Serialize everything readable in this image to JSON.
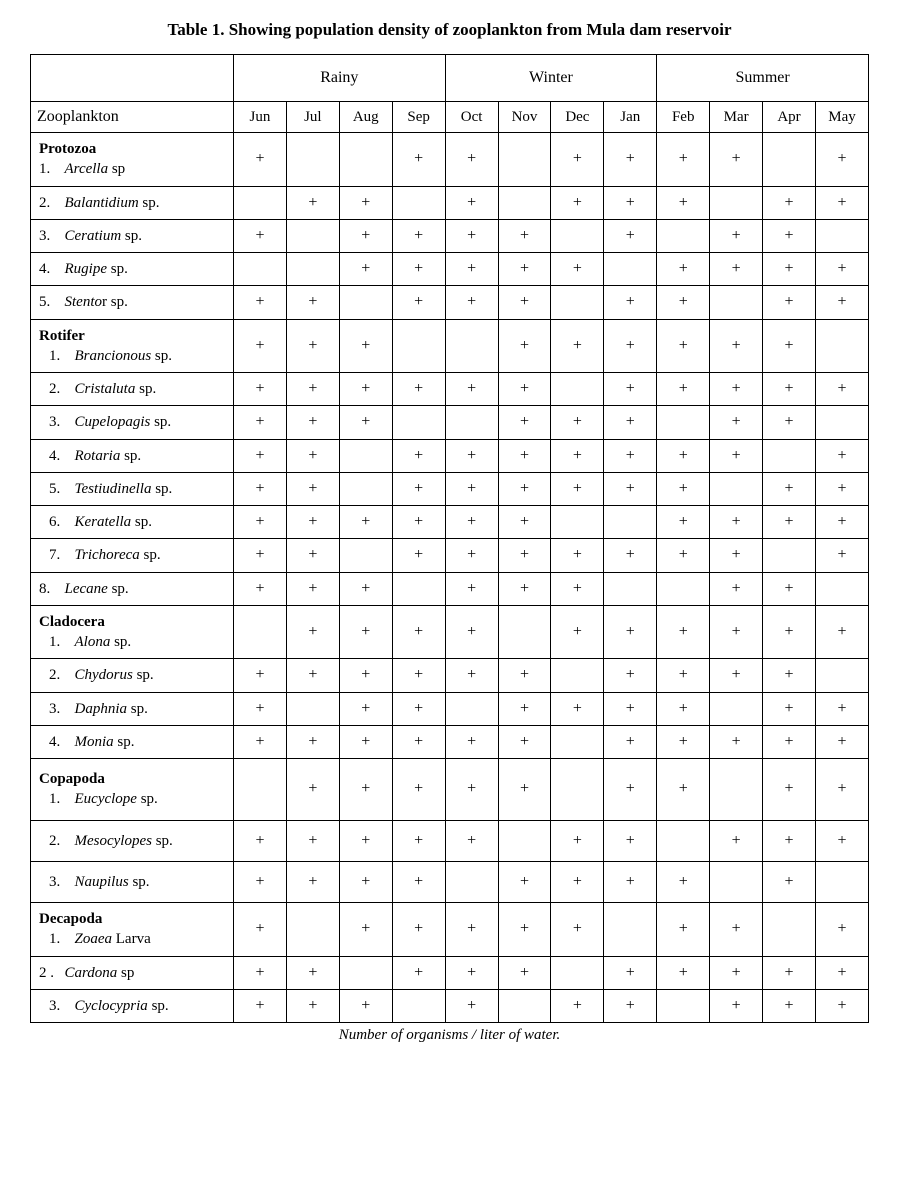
{
  "title": "Table 1. Showing population density of zooplankton from Mula dam reservoir",
  "rowHeader": "Zooplankton",
  "seasons": [
    "Rainy",
    "Winter",
    "Summer"
  ],
  "months": [
    "Jun",
    "Jul",
    "Aug",
    "Sep",
    "Oct",
    "Nov",
    "Dec",
    "Jan",
    "Feb",
    "Mar",
    "Apr",
    "May"
  ],
  "footnote": "Number of organisms / liter of water.",
  "mark": "+",
  "rows": [
    {
      "group": "Protozoa",
      "num": "1.",
      "italic": "Arcella",
      "suffix": " sp",
      "separatePart": "",
      "marks": [
        1,
        0,
        0,
        1,
        1,
        0,
        1,
        1,
        1,
        1,
        0,
        1
      ]
    },
    {
      "num": "2.",
      "italic": "Balantidium",
      "suffix": " sp.",
      "marks": [
        0,
        1,
        1,
        0,
        1,
        0,
        1,
        1,
        1,
        0,
        1,
        1
      ]
    },
    {
      "num": "3.",
      "italic": "Ceratium",
      "suffix": " sp.",
      "marks": [
        1,
        0,
        1,
        1,
        1,
        1,
        0,
        1,
        0,
        1,
        1,
        0
      ]
    },
    {
      "num": "4.",
      "italic": "Rugipe",
      "suffix": " sp.",
      "marks": [
        0,
        0,
        1,
        1,
        1,
        1,
        1,
        0,
        1,
        1,
        1,
        1
      ]
    },
    {
      "num": "5.",
      "italic": "Stento",
      "suffix": "r sp.",
      "separatePart": "r",
      "marks": [
        1,
        1,
        0,
        1,
        1,
        1,
        0,
        1,
        1,
        0,
        1,
        1
      ]
    },
    {
      "group": "Rotifer",
      "num": "1.",
      "italic": "Brancionous",
      "suffix": " sp.",
      "indent": true,
      "marks": [
        1,
        1,
        1,
        0,
        0,
        1,
        1,
        1,
        1,
        1,
        1,
        0
      ]
    },
    {
      "num": "2.",
      "italic": "Cristaluta",
      "suffix": " sp.",
      "indent": true,
      "marks": [
        1,
        1,
        1,
        1,
        1,
        1,
        0,
        1,
        1,
        1,
        1,
        1
      ]
    },
    {
      "num": "3.",
      "italic": "Cupelopagis",
      "suffix": " sp.",
      "indent": true,
      "marks": [
        1,
        1,
        1,
        0,
        0,
        1,
        1,
        1,
        0,
        1,
        1,
        0
      ]
    },
    {
      "num": "4.",
      "italic": "Rotaria",
      "suffix": " sp.",
      "indent": true,
      "marks": [
        1,
        1,
        0,
        1,
        1,
        1,
        1,
        1,
        1,
        1,
        0,
        1
      ]
    },
    {
      "num": "5.",
      "italic": "Testiudinella",
      "suffix": " sp.",
      "indent": true,
      "marks": [
        1,
        1,
        0,
        1,
        1,
        1,
        1,
        1,
        1,
        0,
        1,
        1
      ]
    },
    {
      "num": "6.",
      "italic": "Keratella",
      "suffix": " sp.",
      "indent": true,
      "marks": [
        1,
        1,
        1,
        1,
        1,
        1,
        0,
        0,
        1,
        1,
        1,
        1
      ]
    },
    {
      "num": "7.",
      "italic": "Trichoreca",
      "suffix": " sp.",
      "indent": true,
      "marks": [
        1,
        1,
        0,
        1,
        1,
        1,
        1,
        1,
        1,
        1,
        0,
        1
      ]
    },
    {
      "num": "8.",
      "italic": "Lecane",
      "suffix": " sp.",
      "marks": [
        1,
        1,
        1,
        0,
        1,
        1,
        1,
        0,
        0,
        1,
        1,
        0
      ]
    },
    {
      "group": "Cladocera",
      "num": "1.",
      "italic": "Alona",
      "suffix": " sp.",
      "indent": true,
      "marks": [
        0,
        1,
        1,
        1,
        1,
        0,
        1,
        1,
        1,
        1,
        1,
        1
      ]
    },
    {
      "num": "2.",
      "italic": "Chydorus",
      "suffix": " sp.",
      "indent": true,
      "marks": [
        1,
        1,
        1,
        1,
        1,
        1,
        0,
        1,
        1,
        1,
        1,
        0
      ]
    },
    {
      "num": "3.",
      "italic": "Daphnia",
      "suffix": " sp.",
      "indent": true,
      "marks": [
        1,
        0,
        1,
        1,
        0,
        1,
        1,
        1,
        1,
        0,
        1,
        1
      ]
    },
    {
      "num": "4.",
      "italic": "Monia",
      "suffix": " sp.",
      "indent": true,
      "marks": [
        1,
        1,
        1,
        1,
        1,
        1,
        0,
        1,
        1,
        1,
        1,
        1
      ]
    },
    {
      "group": "Copapoda",
      "num": "1.",
      "italic": "Eucyclope",
      "suffix": " sp.",
      "indent": true,
      "tall": true,
      "marks": [
        0,
        1,
        1,
        1,
        1,
        1,
        0,
        1,
        1,
        0,
        1,
        1
      ]
    },
    {
      "num": "2.",
      "italic": "Mesocylopes",
      "suffix": " sp.",
      "indent": true,
      "tall": true,
      "marks": [
        1,
        1,
        1,
        1,
        1,
        0,
        1,
        1,
        0,
        1,
        1,
        1
      ]
    },
    {
      "num": "3.",
      "italic": "Naupilus",
      "suffix": " sp.",
      "indent": true,
      "tall": true,
      "marks": [
        1,
        1,
        1,
        1,
        0,
        1,
        1,
        1,
        1,
        0,
        1,
        0
      ]
    },
    {
      "group": "Decapoda",
      "num": "1.",
      "italic": "Zoaea",
      "suffix": " Larva",
      "indent": true,
      "marks": [
        1,
        0,
        1,
        1,
        1,
        1,
        1,
        0,
        1,
        1,
        0,
        1
      ]
    },
    {
      "num": " 2 .",
      "italic": "Cardona",
      "suffix": " sp",
      "marks": [
        1,
        1,
        0,
        1,
        1,
        1,
        0,
        1,
        1,
        1,
        1,
        1
      ]
    },
    {
      "num": "3.",
      "italic": "Cyclocypria",
      "suffix": " sp.",
      "indent": true,
      "marks": [
        1,
        1,
        1,
        0,
        1,
        0,
        1,
        1,
        0,
        1,
        1,
        1
      ]
    }
  ]
}
